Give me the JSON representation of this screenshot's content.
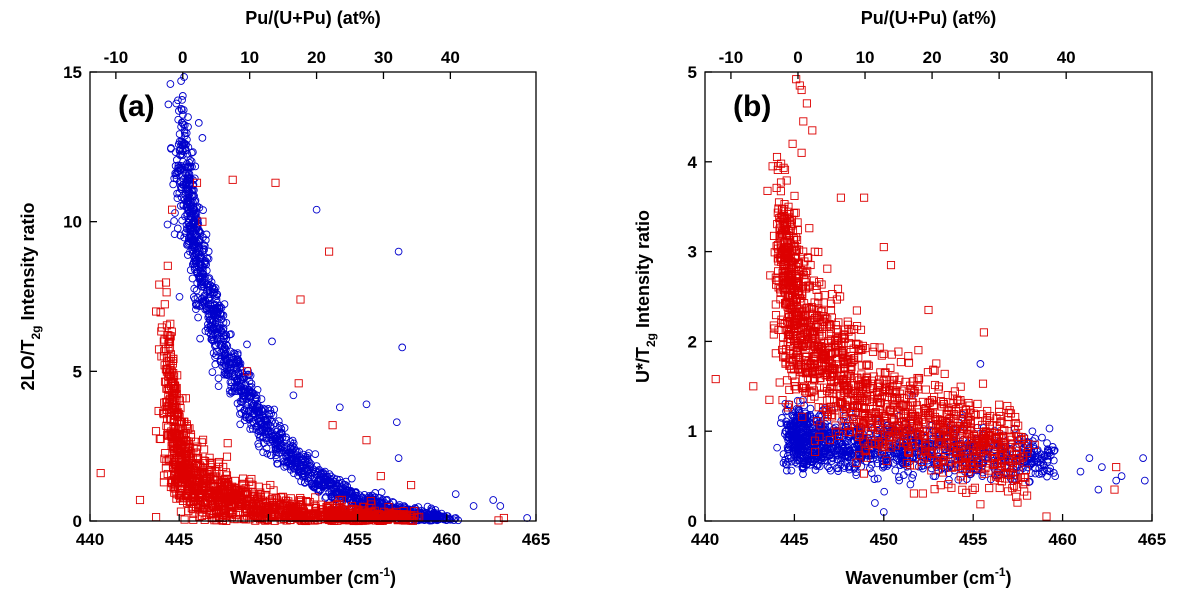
{
  "chart_data": [
    {
      "type": "scatter",
      "panel_label": "(a)",
      "xlabel": "Wavenumber (cm",
      "xlabel_sup": "-1",
      "xlabel_close": ")",
      "x2label": "Pu/(U+Pu) (at%)",
      "ylabel": "2LO/T",
      "ylabel_sub": "2g",
      "ylabel_rest": " Intensity ratio",
      "xlim": [
        440,
        465
      ],
      "ylim": [
        0,
        15
      ],
      "xticks": [
        440,
        445,
        450,
        455,
        460,
        465
      ],
      "yticks": [
        0,
        5,
        10,
        15
      ],
      "x2ticks": [
        -10,
        0,
        10,
        20,
        30,
        40
      ],
      "x2_map": {
        "x_at_0": 445.2,
        "x_per_unit": 0.375
      },
      "series": [
        {
          "marker": "circle",
          "color": "#0000cc",
          "core": [
            [
              445.3,
              12.0
            ],
            [
              445.5,
              10.8
            ],
            [
              445.8,
              9.6
            ],
            [
              446.2,
              8.4
            ],
            [
              446.8,
              7.0
            ],
            [
              447.5,
              5.8
            ],
            [
              448.3,
              4.7
            ],
            [
              449.2,
              3.7
            ],
            [
              450.3,
              2.8
            ],
            [
              451.5,
              2.0
            ],
            [
              452.8,
              1.4
            ],
            [
              454.2,
              0.9
            ],
            [
              455.7,
              0.55
            ],
            [
              457.2,
              0.3
            ],
            [
              458.5,
              0.15
            ],
            [
              460.0,
              0.05
            ]
          ],
          "outliers": [
            [
              445.2,
              14.2
            ],
            [
              445.7,
              12.3
            ],
            [
              446.1,
              13.3
            ],
            [
              446.3,
              12.8
            ],
            [
              448.8,
              5.9
            ],
            [
              450.2,
              6.0
            ],
            [
              451.4,
              4.2
            ],
            [
              452.7,
              10.4
            ],
            [
              454.0,
              3.8
            ],
            [
              455.5,
              3.9
            ],
            [
              457.3,
              9.0
            ],
            [
              457.5,
              5.8
            ],
            [
              457.2,
              3.3
            ],
            [
              457.3,
              2.1
            ],
            [
              460.5,
              0.9
            ],
            [
              461.5,
              0.5
            ],
            [
              462.6,
              0.7
            ],
            [
              463.0,
              0.5
            ],
            [
              464.5,
              0.1
            ]
          ]
        },
        {
          "marker": "square",
          "color": "#dd0000",
          "core": [
            [
              444.5,
              4.5
            ],
            [
              444.6,
              3.4
            ],
            [
              444.8,
              2.6
            ],
            [
              445.2,
              2.0
            ],
            [
              445.7,
              1.5
            ],
            [
              446.3,
              1.2
            ],
            [
              447.0,
              0.95
            ],
            [
              447.8,
              0.75
            ],
            [
              448.8,
              0.55
            ],
            [
              449.8,
              0.42
            ],
            [
              451.0,
              0.3
            ],
            [
              452.3,
              0.22
            ],
            [
              453.7,
              0.15
            ],
            [
              455.2,
              0.1
            ],
            [
              456.8,
              0.05
            ],
            [
              458.0,
              0.02
            ]
          ],
          "outliers": [
            [
              440.6,
              1.6
            ],
            [
              442.8,
              0.7
            ],
            [
              443.7,
              3.0
            ],
            [
              444.0,
              5.5
            ],
            [
              444.4,
              6.2
            ],
            [
              444.6,
              10.4
            ],
            [
              446.0,
              11.3
            ],
            [
              446.3,
              10.0
            ],
            [
              448.0,
              11.4
            ],
            [
              450.4,
              11.3
            ],
            [
              451.8,
              7.4
            ],
            [
              453.4,
              9.0
            ],
            [
              448.8,
              5.0
            ],
            [
              451.7,
              4.6
            ],
            [
              453.6,
              3.2
            ],
            [
              455.5,
              2.7
            ],
            [
              456.3,
              1.5
            ],
            [
              458.0,
              1.2
            ],
            [
              462.9,
              0.02
            ],
            [
              463.2,
              0.1
            ]
          ]
        }
      ]
    },
    {
      "type": "scatter",
      "panel_label": "(b)",
      "xlabel": "Wavenumber (cm",
      "xlabel_sup": "-1",
      "xlabel_close": ")",
      "x2label": "Pu/(U+Pu) (at%)",
      "ylabel": "U*/T",
      "ylabel_sub": "2g",
      "ylabel_rest": " Intensity ratio",
      "xlim": [
        440,
        465
      ],
      "ylim": [
        0,
        5
      ],
      "xticks": [
        440,
        445,
        450,
        455,
        460,
        465
      ],
      "yticks": [
        0,
        1,
        2,
        3,
        4,
        5
      ],
      "x2ticks": [
        -10,
        0,
        10,
        20,
        30,
        40
      ],
      "x2_map": {
        "x_at_0": 445.2,
        "x_per_unit": 0.375
      },
      "series": [
        {
          "marker": "circle",
          "color": "#0000cc",
          "core": [
            [
              444.9,
              0.95
            ],
            [
              445.5,
              0.9
            ],
            [
              446.2,
              0.88
            ],
            [
              447.0,
              0.86
            ],
            [
              448.0,
              0.84
            ],
            [
              449.2,
              0.82
            ],
            [
              450.5,
              0.8
            ],
            [
              452.0,
              0.78
            ],
            [
              453.5,
              0.76
            ],
            [
              455.0,
              0.74
            ],
            [
              456.5,
              0.72
            ],
            [
              458.0,
              0.7
            ],
            [
              459.5,
              0.65
            ]
          ],
          "outliers": [
            [
              449.5,
              0.2
            ],
            [
              450.0,
              0.1
            ],
            [
              455.4,
              1.75
            ],
            [
              451.6,
              1.4
            ],
            [
              461.0,
              0.55
            ],
            [
              461.5,
              0.7
            ],
            [
              462.2,
              0.6
            ],
            [
              463.0,
              0.45
            ],
            [
              463.3,
              0.5
            ],
            [
              464.5,
              0.7
            ],
            [
              464.6,
              0.45
            ],
            [
              462.0,
              0.35
            ]
          ]
        },
        {
          "marker": "square",
          "color": "#dd0000",
          "core": [
            [
              444.4,
              2.8
            ],
            [
              444.7,
              2.7
            ],
            [
              445.0,
              2.5
            ],
            [
              445.4,
              2.25
            ],
            [
              445.9,
              2.05
            ],
            [
              446.5,
              1.9
            ],
            [
              447.2,
              1.75
            ],
            [
              448.0,
              1.6
            ],
            [
              449.0,
              1.45
            ],
            [
              450.0,
              1.3
            ],
            [
              451.2,
              1.18
            ],
            [
              452.5,
              1.05
            ],
            [
              453.8,
              0.95
            ],
            [
              455.2,
              0.88
            ],
            [
              456.5,
              0.8
            ],
            [
              457.8,
              0.72
            ]
          ],
          "outliers": [
            [
              440.6,
              1.58
            ],
            [
              442.7,
              1.5
            ],
            [
              443.6,
              1.35
            ],
            [
              445.1,
              4.92
            ],
            [
              445.3,
              4.85
            ],
            [
              445.4,
              4.8
            ],
            [
              445.7,
              4.65
            ],
            [
              445.5,
              4.45
            ],
            [
              446.0,
              4.35
            ],
            [
              444.9,
              4.2
            ],
            [
              445.4,
              4.1
            ],
            [
              448.9,
              3.6
            ],
            [
              447.6,
              3.6
            ],
            [
              450.0,
              3.05
            ],
            [
              450.4,
              2.85
            ],
            [
              452.5,
              2.35
            ],
            [
              455.6,
              2.1
            ],
            [
              459.1,
              0.05
            ],
            [
              462.9,
              0.35
            ],
            [
              463.0,
              0.6
            ]
          ]
        }
      ]
    }
  ]
}
